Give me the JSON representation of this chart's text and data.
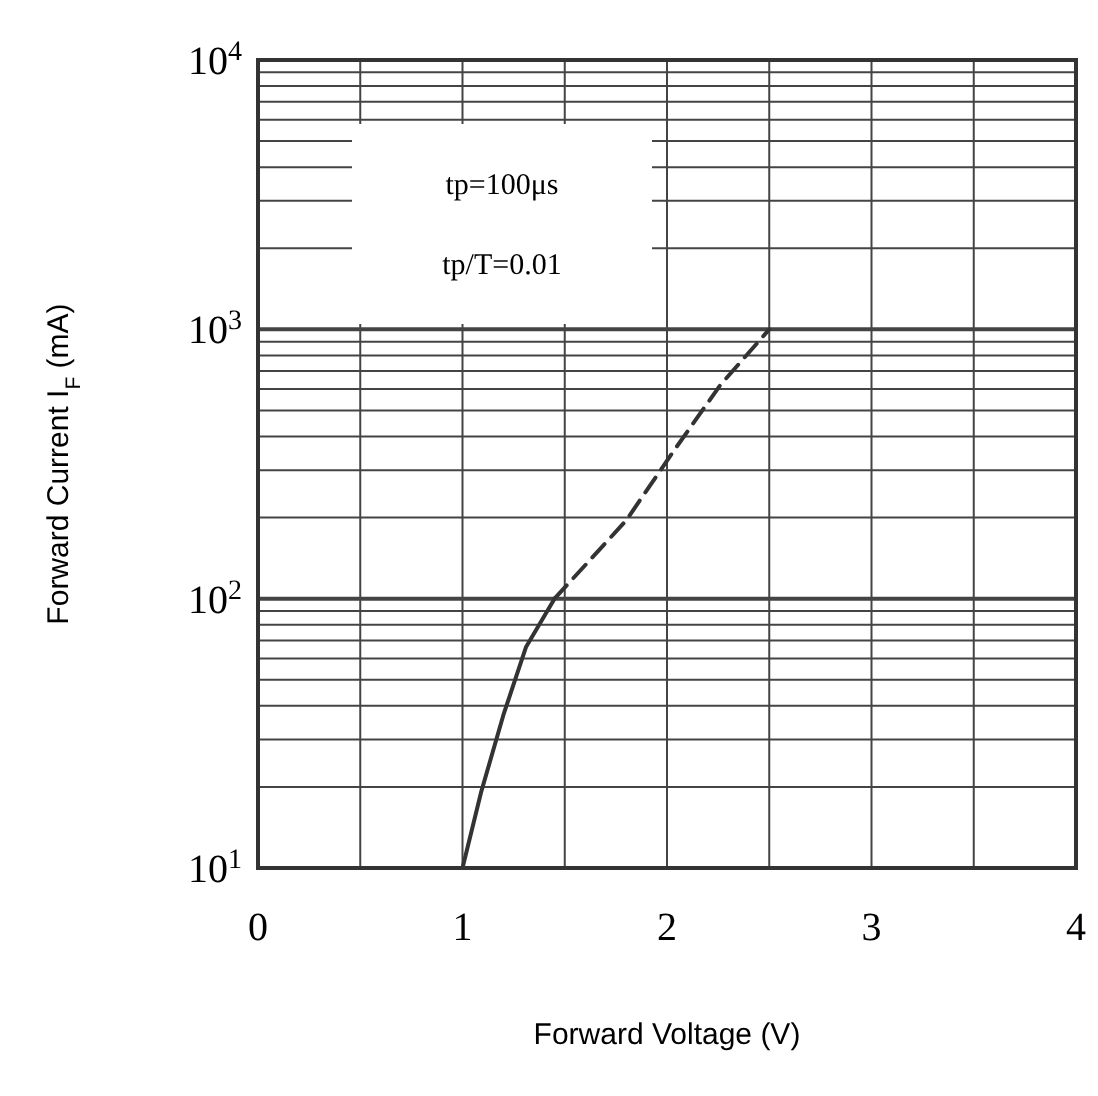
{
  "chart_data": {
    "type": "line",
    "xlabel": "Forward Voltage (V)",
    "ylabel": "Forward Current I$_{F}$ (mA)",
    "annotations": [
      "tp=100μs",
      "tp/T=0.01"
    ],
    "log": "y",
    "grid": true,
    "marker": "none",
    "xlim": [
      0,
      4
    ],
    "xticks": [
      0,
      {
        "value": 0.5,
        "label": null
      },
      1,
      {
        "value": 1.5,
        "label": null
      },
      2,
      {
        "value": 2.5,
        "label": null
      },
      3,
      {
        "value": 3.5,
        "label": null
      },
      4
    ],
    "ylim": [
      10,
      10000
    ],
    "yticks": [
      {
        "value": 10,
        "label": "10$^{1}$"
      },
      {
        "value": 20,
        "label": null
      },
      {
        "value": 30,
        "label": null
      },
      {
        "value": 40,
        "label": null
      },
      {
        "value": 50,
        "label": null
      },
      {
        "value": 60,
        "label": null
      },
      {
        "value": 70,
        "label": null
      },
      {
        "value": 80,
        "label": null
      },
      {
        "value": 90,
        "label": null
      },
      {
        "value": 100,
        "label": "10$^{2}$"
      },
      {
        "value": 200,
        "label": null
      },
      {
        "value": 300,
        "label": null
      },
      {
        "value": 400,
        "label": null
      },
      {
        "value": 500,
        "label": null
      },
      {
        "value": 600,
        "label": null
      },
      {
        "value": 700,
        "label": null
      },
      {
        "value": 800,
        "label": null
      },
      {
        "value": 900,
        "label": null
      },
      {
        "value": 1000,
        "label": "10$^{3}$"
      },
      {
        "value": 2000,
        "label": null
      },
      {
        "value": 3000,
        "label": null
      },
      {
        "value": 4000,
        "label": null
      },
      {
        "value": 5000,
        "label": null
      },
      {
        "value": 6000,
        "label": null
      },
      {
        "value": 7000,
        "label": null
      },
      {
        "value": 8000,
        "label": null
      },
      {
        "value": 9000,
        "label": null
      },
      {
        "value": 10000,
        "label": "10$^{4}$"
      }
    ],
    "series": [
      {
        "color": "#333333",
        "line_style": "solid",
        "x": [
          1.0,
          1.09,
          1.2,
          1.31,
          1.45
        ],
        "values": [
          10,
          19,
          37,
          66,
          100
        ]
      },
      {
        "color": "#333333",
        "line_style": "dashed",
        "x": [
          1.45,
          1.8,
          2.04,
          2.26,
          2.5
        ],
        "values": [
          100,
          195,
          360,
          620,
          1000
        ]
      }
    ]
  }
}
